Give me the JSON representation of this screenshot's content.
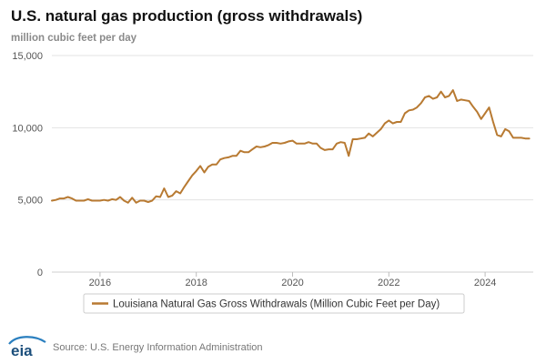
{
  "header": {
    "title": "U.S. natural gas production (gross withdrawals)",
    "subtitle": "million cubic feet per day"
  },
  "footer": {
    "source": "Source: U.S. Energy Information Administration",
    "logo_text": "eia"
  },
  "colors": {
    "series": "#b87a32",
    "grid": "#e3e3e3",
    "axis_text": "#555555",
    "logo_blue": "#2a7fbf"
  },
  "chart_data": {
    "type": "line",
    "title": "U.S. natural gas production (gross withdrawals)",
    "ylabel": "million cubic feet per day",
    "xlabel": "",
    "ylim": [
      0,
      15000
    ],
    "xlim": [
      2015.0,
      2025.0
    ],
    "y_ticks": [
      0,
      5000,
      10000,
      15000
    ],
    "y_tick_labels": [
      "0",
      "5,000",
      "10,000",
      "15,000"
    ],
    "x_ticks": [
      2016,
      2018,
      2020,
      2022,
      2024
    ],
    "x_tick_labels": [
      "2016",
      "2018",
      "2020",
      "2022",
      "2024"
    ],
    "grid": "horizontal",
    "legend_position": "bottom",
    "series": [
      {
        "name": "Louisiana Natural Gas Gross Withdrawals (Million Cubic Feet per Day)",
        "x": [
          2015.0,
          2015.083,
          2015.167,
          2015.25,
          2015.333,
          2015.417,
          2015.5,
          2015.583,
          2015.667,
          2015.75,
          2015.833,
          2015.917,
          2016.0,
          2016.083,
          2016.167,
          2016.25,
          2016.333,
          2016.417,
          2016.5,
          2016.583,
          2016.667,
          2016.75,
          2016.833,
          2016.917,
          2017.0,
          2017.083,
          2017.167,
          2017.25,
          2017.333,
          2017.417,
          2017.5,
          2017.583,
          2017.667,
          2017.75,
          2017.833,
          2017.917,
          2018.0,
          2018.083,
          2018.167,
          2018.25,
          2018.333,
          2018.417,
          2018.5,
          2018.583,
          2018.667,
          2018.75,
          2018.833,
          2018.917,
          2019.0,
          2019.083,
          2019.167,
          2019.25,
          2019.333,
          2019.417,
          2019.5,
          2019.583,
          2019.667,
          2019.75,
          2019.833,
          2019.917,
          2020.0,
          2020.083,
          2020.167,
          2020.25,
          2020.333,
          2020.417,
          2020.5,
          2020.583,
          2020.667,
          2020.75,
          2020.833,
          2020.917,
          2021.0,
          2021.083,
          2021.167,
          2021.25,
          2021.333,
          2021.417,
          2021.5,
          2021.583,
          2021.667,
          2021.75,
          2021.833,
          2021.917,
          2022.0,
          2022.083,
          2022.167,
          2022.25,
          2022.333,
          2022.417,
          2022.5,
          2022.583,
          2022.667,
          2022.75,
          2022.833,
          2022.917,
          2023.0,
          2023.083,
          2023.167,
          2023.25,
          2023.333,
          2023.417,
          2023.5,
          2023.583,
          2023.667,
          2023.75,
          2023.833,
          2023.917,
          2024.0,
          2024.083,
          2024.167,
          2024.25,
          2024.333,
          2024.417,
          2024.5,
          2024.583,
          2024.667,
          2024.75,
          2024.833,
          2024.917
        ],
        "values": [
          4950,
          5000,
          5100,
          5100,
          5200,
          5100,
          4950,
          4950,
          4950,
          5050,
          4950,
          4950,
          4950,
          5000,
          4950,
          5050,
          5000,
          5200,
          4950,
          4800,
          5150,
          4800,
          4950,
          4950,
          4850,
          4950,
          5250,
          5200,
          5800,
          5200,
          5300,
          5600,
          5450,
          5900,
          6300,
          6700,
          7000,
          7350,
          6900,
          7300,
          7450,
          7450,
          7800,
          7900,
          7950,
          8050,
          8050,
          8400,
          8300,
          8300,
          8500,
          8700,
          8650,
          8700,
          8800,
          8950,
          8950,
          8900,
          8950,
          9050,
          9100,
          8900,
          8900,
          8900,
          9000,
          8900,
          8900,
          8600,
          8450,
          8500,
          8500,
          8900,
          9000,
          8950,
          8050,
          9200,
          9200,
          9250,
          9300,
          9600,
          9400,
          9650,
          9900,
          10300,
          10500,
          10300,
          10400,
          10400,
          11000,
          11200,
          11250,
          11400,
          11700,
          12100,
          12200,
          12000,
          12100,
          12500,
          12100,
          12200,
          12600,
          11850,
          11950,
          11900,
          11850,
          11450,
          11100,
          10600,
          11000,
          11400,
          10400,
          9500,
          9400,
          9900,
          9750,
          9300,
          9300,
          9300,
          9250,
          9250
        ]
      }
    ]
  }
}
